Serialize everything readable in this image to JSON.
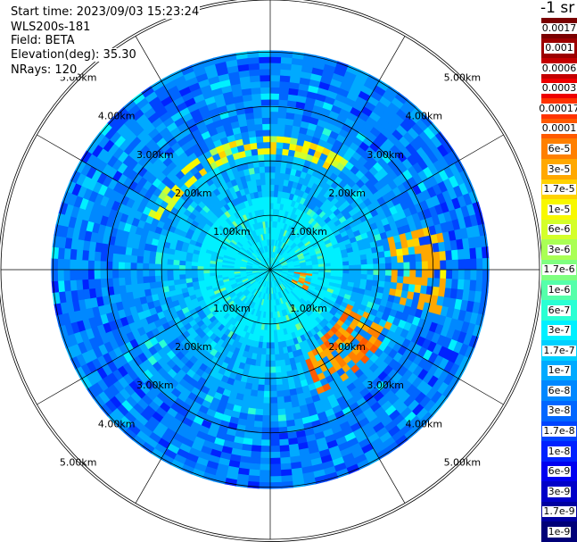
{
  "info": {
    "start_time": "Start time: 2023/09/03 15:23:24",
    "instrument": "WLS200s-181",
    "field": "Field: BETA",
    "elevation": "Elevation(deg): 35.30",
    "nrays": "NRays: 120"
  },
  "colorbar": {
    "unit": "-1 sr",
    "entries": [
      {
        "label": "0.0017",
        "color": "#7a0000"
      },
      {
        "label": "0.001",
        "color": "#9c0000"
      },
      {
        "label": "0.0006",
        "color": "#c40000"
      },
      {
        "label": "0.0003",
        "color": "#ee0000"
      },
      {
        "label": "0.00017",
        "color": "#ff3300"
      },
      {
        "label": "0.0001",
        "color": "#ff5a00"
      },
      {
        "label": "6e-5",
        "color": "#ff8000"
      },
      {
        "label": "3e-5",
        "color": "#ffa800"
      },
      {
        "label": "1.7e-5",
        "color": "#ffd200"
      },
      {
        "label": "1e-5",
        "color": "#f8f800"
      },
      {
        "label": "6e-6",
        "color": "#d4ff2a"
      },
      {
        "label": "3e-6",
        "color": "#aaff55"
      },
      {
        "label": "1.7e-6",
        "color": "#7fff80"
      },
      {
        "label": "1e-6",
        "color": "#55ffaa"
      },
      {
        "label": "6e-7",
        "color": "#2affd4"
      },
      {
        "label": "3e-7",
        "color": "#00f0ff"
      },
      {
        "label": "1.7e-7",
        "color": "#00d0ff"
      },
      {
        "label": "1e-7",
        "color": "#00aaff"
      },
      {
        "label": "6e-8",
        "color": "#0088ff"
      },
      {
        "label": "3e-8",
        "color": "#0066ff"
      },
      {
        "label": "1.7e-8",
        "color": "#0044ff"
      },
      {
        "label": "1e-8",
        "color": "#0022ff"
      },
      {
        "label": "6e-9",
        "color": "#0000f0"
      },
      {
        "label": "3e-9",
        "color": "#0000c8"
      },
      {
        "label": "1.7e-9",
        "color": "#0000a0"
      },
      {
        "label": "1e-9",
        "color": "#000078"
      }
    ]
  },
  "chart_data": {
    "type": "heatmap",
    "projection": "polar (PPI scan)",
    "field": "BETA",
    "elevation_deg": 35.3,
    "n_rays": 120,
    "range_rings_km": [
      1.0,
      2.0,
      3.0,
      4.0,
      5.0
    ],
    "ring_labels": [
      "1.00km",
      "2.00km",
      "3.00km",
      "4.00km",
      "5.00km"
    ],
    "max_range_km": 5.8,
    "spokes_deg": [
      0,
      30,
      60,
      90,
      120,
      150,
      180,
      210,
      240,
      270,
      300,
      330
    ],
    "colorscale": "log jet, 1e-9 to 0.0017 sr-1",
    "features": [
      {
        "description": "aerosol ring",
        "range_km": [
          3.0,
          3.6
        ],
        "azimuth_deg": [
          295,
          35
        ],
        "approx_value": 1e-05
      },
      {
        "description": "east arc",
        "range_km": [
          3.2,
          4.7
        ],
        "azimuth_deg": [
          75,
          105
        ],
        "approx_value": 3e-05
      },
      {
        "description": "south-east arc",
        "range_km": [
          2.2,
          3.6
        ],
        "azimuth_deg": [
          115,
          160
        ],
        "approx_value": 6e-05
      },
      {
        "description": "near echo",
        "range_km": [
          0.7,
          1.2
        ],
        "azimuth_deg": [
          95,
          120
        ],
        "approx_value": 6e-05
      }
    ]
  }
}
